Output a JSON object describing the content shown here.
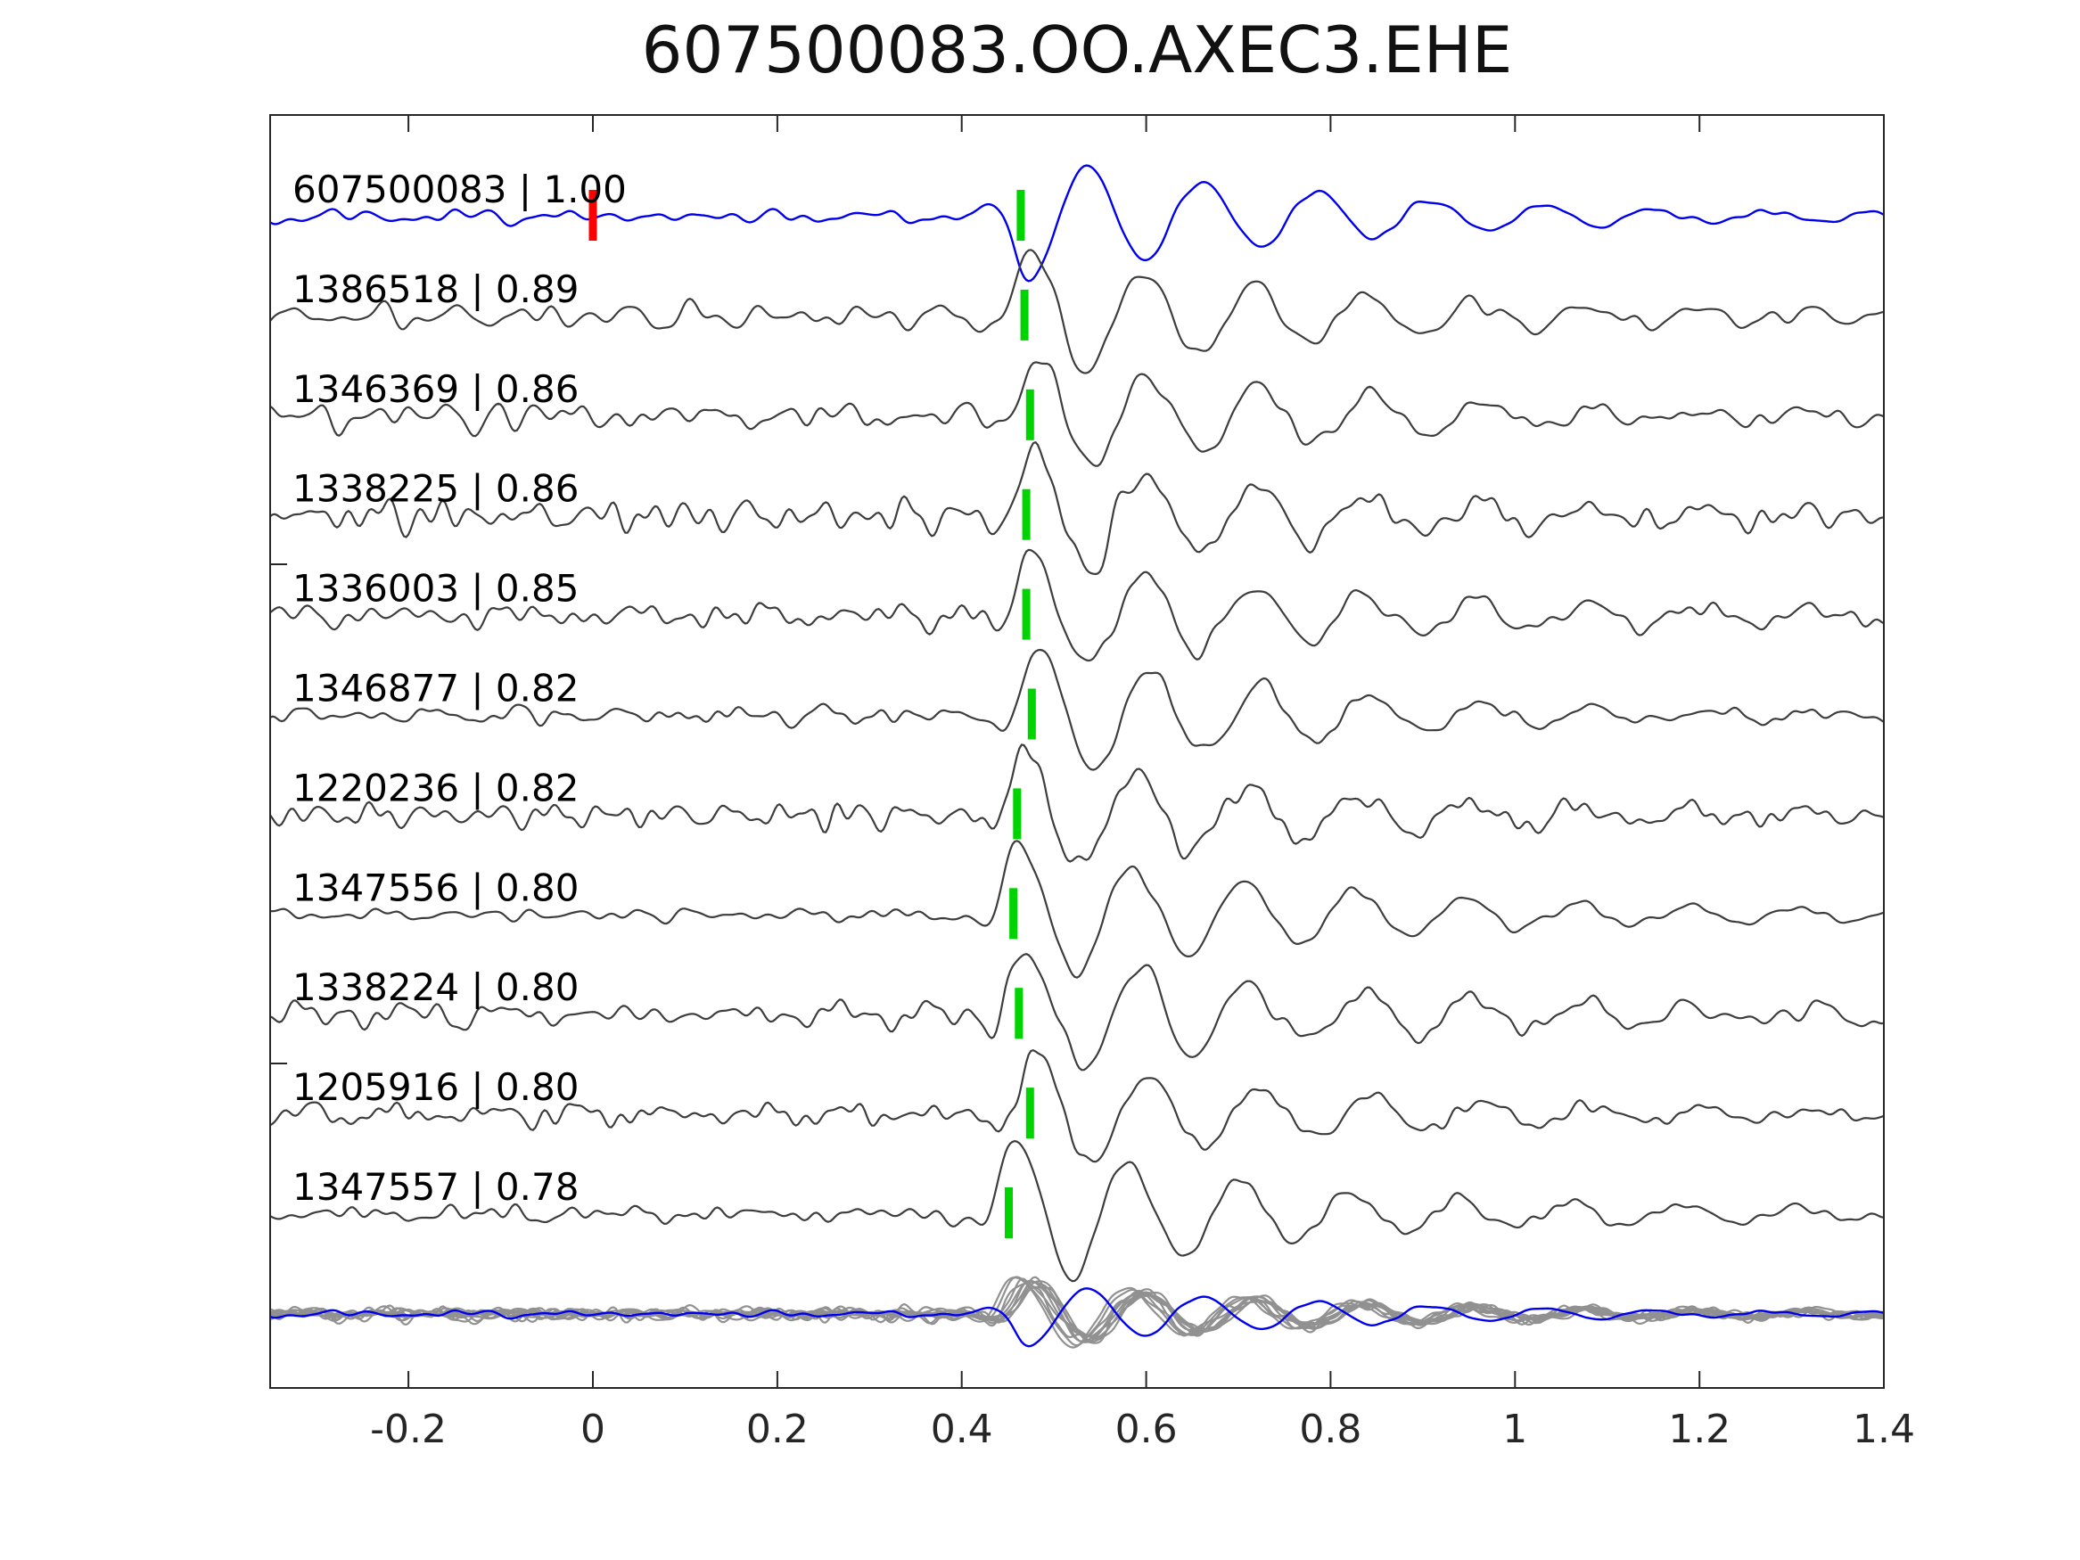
{
  "title": "607500083.OO.AXEC3.EHE",
  "colors": {
    "template_trace": "#0000ee",
    "match_trace": "#3d3d3d",
    "overlay_trace": "#919191",
    "pick_marker": "#00d400",
    "reference_marker": "#ff0000",
    "axis": "#262626",
    "label_text": "#000000"
  },
  "chart_data": {
    "type": "line",
    "title": "607500083.OO.AXEC3.EHE",
    "xlabel": "",
    "ylabel": "",
    "x_axis": {
      "min": -0.35,
      "max": 1.4,
      "tick_values": [
        -0.2,
        0,
        0.2,
        0.4,
        0.6,
        0.8,
        1,
        1.2,
        1.4
      ],
      "tick_labels": [
        "-0.2",
        "0",
        "0.2",
        "0.4",
        "0.6",
        "0.8",
        "1",
        "1.2",
        "1.4"
      ]
    },
    "legend": "none",
    "grid": false,
    "traces": [
      {
        "id": "607500083",
        "similarity": "1.00",
        "label": "607500083 | 1.00",
        "role": "template",
        "pick_time": 0.464,
        "reference_time": 0.0,
        "render": {
          "seed": 101,
          "noise_amp": 7,
          "wavelet_amp": 66
        }
      },
      {
        "id": "1386518",
        "similarity": "0.89",
        "label": "1386518 | 0.89",
        "role": "match",
        "pick_time": 0.468,
        "render": {
          "seed": 202,
          "noise_amp": 13,
          "wavelet_amp": 76
        }
      },
      {
        "id": "1346369",
        "similarity": "0.86",
        "label": "1346369 | 0.86",
        "role": "match",
        "pick_time": 0.474,
        "render": {
          "seed": 303,
          "noise_amp": 14,
          "wavelet_amp": 70
        }
      },
      {
        "id": "1338225",
        "similarity": "0.86",
        "label": "1338225 | 0.86",
        "role": "match",
        "pick_time": 0.47,
        "render": {
          "seed": 404,
          "noise_amp": 18,
          "wavelet_amp": 72
        }
      },
      {
        "id": "1336003",
        "similarity": "0.85",
        "label": "1336003 | 0.85",
        "role": "match",
        "pick_time": 0.47,
        "render": {
          "seed": 505,
          "noise_amp": 15,
          "wavelet_amp": 70
        }
      },
      {
        "id": "1346877",
        "similarity": "0.82",
        "label": "1346877 | 0.82",
        "role": "match",
        "pick_time": 0.476,
        "render": {
          "seed": 606,
          "noise_amp": 10,
          "wavelet_amp": 72
        }
      },
      {
        "id": "1220236",
        "similarity": "0.82",
        "label": "1220236 | 0.82",
        "role": "match",
        "pick_time": 0.46,
        "render": {
          "seed": 707,
          "noise_amp": 13,
          "wavelet_amp": 70
        }
      },
      {
        "id": "1347556",
        "similarity": "0.80",
        "label": "1347556 | 0.80",
        "role": "match",
        "pick_time": 0.456,
        "render": {
          "seed": 808,
          "noise_amp": 8,
          "wavelet_amp": 84
        }
      },
      {
        "id": "1338224",
        "similarity": "0.80",
        "label": "1338224 | 0.80",
        "role": "match",
        "pick_time": 0.462,
        "render": {
          "seed": 909,
          "noise_amp": 18,
          "wavelet_amp": 74
        }
      },
      {
        "id": "1205916",
        "similarity": "0.80",
        "label": "1205916 | 0.80",
        "role": "match",
        "pick_time": 0.474,
        "render": {
          "seed": 111,
          "noise_amp": 11,
          "wavelet_amp": 66
        }
      },
      {
        "id": "1347557",
        "similarity": "0.78",
        "label": "1347557 | 0.78",
        "role": "match",
        "pick_time": 0.451,
        "render": {
          "seed": 222,
          "noise_amp": 9,
          "wavelet_amp": 84
        }
      }
    ],
    "overlay": {
      "description": "all matched traces overlaid with template on bottom row",
      "scale": 0.5
    }
  }
}
